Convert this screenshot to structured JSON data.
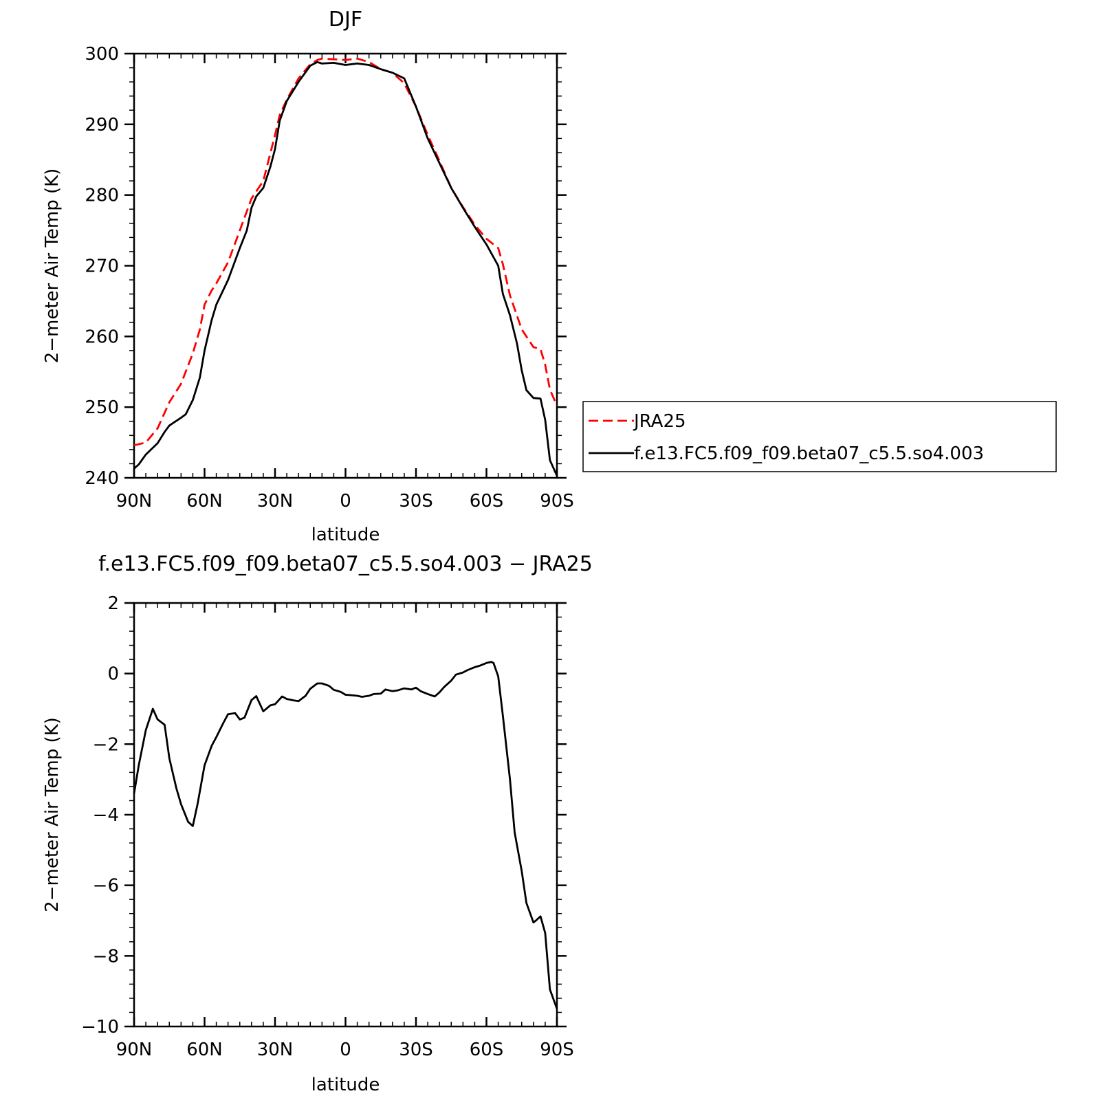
{
  "chart_data": [
    {
      "type": "line",
      "title": "DJF",
      "xlabel": "latitude",
      "ylabel": "2−meter Air Temp (K)",
      "xlim": [
        90,
        -90
      ],
      "ylim": [
        240,
        300
      ],
      "x_tick_values": [
        90,
        60,
        30,
        0,
        -30,
        -60,
        -90
      ],
      "x_tick_labels": [
        "90N",
        "60N",
        "30N",
        "0",
        "30S",
        "60S",
        "90S"
      ],
      "y_tick_values": [
        240,
        250,
        260,
        270,
        280,
        290,
        300
      ],
      "y_tick_labels": [
        "240",
        "250",
        "260",
        "270",
        "280",
        "290",
        "300"
      ],
      "grid": false,
      "legend": "right",
      "series": [
        {
          "name": "JRA25",
          "color": "#ff0000",
          "dash": "dashed",
          "x": [
            90,
            85,
            80,
            75,
            70,
            65,
            62,
            60,
            57,
            55,
            50,
            45,
            40,
            35,
            30,
            28,
            25,
            20,
            15,
            12,
            10,
            5,
            0,
            -5,
            -10,
            -15,
            -20,
            -25,
            -30,
            -35,
            -40,
            -45,
            -50,
            -55,
            -60,
            -65,
            -67,
            -70,
            -75,
            -80,
            -83,
            -85,
            -87,
            -90
          ],
          "y": [
            244.6,
            245.0,
            247.0,
            250.7,
            253.3,
            257.6,
            261.0,
            264.5,
            266.5,
            267.5,
            270.5,
            275.0,
            279.5,
            282.0,
            288.5,
            291.3,
            293.5,
            296.5,
            298.5,
            299.1,
            299.3,
            299.2,
            299.1,
            299.3,
            298.8,
            297.8,
            297.3,
            295.8,
            292.5,
            288.5,
            284.8,
            281.0,
            278.3,
            275.8,
            273.8,
            272.5,
            270.2,
            265.8,
            261.0,
            258.5,
            258.2,
            256.0,
            252.5,
            250.2
          ]
        },
        {
          "name": "f.e13.FC5.f09_f09.beta07_c5.5.so4.003",
          "color": "#000000",
          "dash": "solid",
          "x": [
            90,
            88,
            85,
            80,
            77,
            75,
            70,
            68,
            65,
            62,
            60,
            57,
            55,
            50,
            45,
            42,
            40,
            38,
            35,
            32,
            30,
            28,
            25,
            20,
            15,
            12,
            10,
            5,
            0,
            -5,
            -10,
            -15,
            -20,
            -25,
            -30,
            -35,
            -40,
            -45,
            -50,
            -55,
            -60,
            -65,
            -67,
            -70,
            -73,
            -75,
            -77,
            -80,
            -83,
            -85,
            -87,
            -90
          ],
          "y": [
            241.3,
            241.9,
            243.3,
            244.9,
            246.5,
            247.4,
            248.5,
            249.0,
            251.0,
            254.2,
            258.0,
            262.3,
            264.5,
            268.0,
            272.5,
            275.0,
            278.2,
            279.8,
            281.0,
            284.0,
            286.5,
            290.5,
            293.3,
            296.0,
            298.3,
            298.8,
            298.6,
            298.7,
            298.4,
            298.6,
            298.4,
            297.8,
            297.3,
            296.5,
            292.5,
            288.0,
            284.5,
            281.0,
            278.2,
            275.5,
            273.0,
            270.0,
            266.0,
            263.0,
            259.0,
            255.2,
            252.4,
            251.3,
            251.2,
            248.2,
            242.5,
            240.3
          ]
        }
      ]
    },
    {
      "type": "line",
      "title": "f.e13.FC5.f09_f09.beta07_c5.5.so4.003 − JRA25",
      "xlabel": "latitude",
      "ylabel": "2−meter Air Temp (K)",
      "xlim": [
        90,
        -90
      ],
      "ylim": [
        -10,
        2
      ],
      "x_tick_values": [
        90,
        60,
        30,
        0,
        -30,
        -60,
        -90
      ],
      "x_tick_labels": [
        "90N",
        "60N",
        "30N",
        "0",
        "30S",
        "60S",
        "90S"
      ],
      "y_tick_values": [
        -10,
        -8,
        -6,
        -4,
        -2,
        0,
        2
      ],
      "y_tick_labels": [
        "−10",
        "−8",
        "−6",
        "−4",
        "−2",
        "0",
        "2"
      ],
      "grid": false,
      "series": [
        {
          "color": "#000000",
          "dash": "solid",
          "x": [
            90,
            88,
            85,
            82,
            80,
            77,
            75,
            72,
            70,
            67,
            65,
            63,
            60,
            57,
            55,
            52,
            50,
            47,
            45,
            43,
            40,
            38,
            35,
            32,
            30,
            27,
            25,
            22,
            20,
            17,
            15,
            12,
            10,
            7,
            5,
            2,
            0,
            -2,
            -5,
            -7,
            -10,
            -12,
            -15,
            -17,
            -20,
            -22,
            -25,
            -28,
            -30,
            -32,
            -35,
            -38,
            -40,
            -42,
            -45,
            -47,
            -50,
            -52,
            -55,
            -57,
            -60,
            -62,
            -63,
            -65,
            -67,
            -70,
            -72,
            -75,
            -77,
            -80,
            -81,
            -83,
            -85,
            -87,
            -90
          ],
          "y": [
            -3.4,
            -2.6,
            -1.6,
            -1.0,
            -1.3,
            -1.45,
            -2.4,
            -3.25,
            -3.7,
            -4.2,
            -4.32,
            -3.7,
            -2.6,
            -2.05,
            -1.8,
            -1.4,
            -1.15,
            -1.12,
            -1.3,
            -1.25,
            -0.75,
            -0.64,
            -1.07,
            -0.9,
            -0.87,
            -0.65,
            -0.72,
            -0.76,
            -0.78,
            -0.63,
            -0.43,
            -0.28,
            -0.28,
            -0.35,
            -0.46,
            -0.52,
            -0.6,
            -0.61,
            -0.63,
            -0.66,
            -0.63,
            -0.58,
            -0.57,
            -0.45,
            -0.5,
            -0.48,
            -0.42,
            -0.45,
            -0.4,
            -0.5,
            -0.58,
            -0.65,
            -0.53,
            -0.38,
            -0.2,
            -0.03,
            0.03,
            0.1,
            0.18,
            0.22,
            0.3,
            0.33,
            0.3,
            -0.08,
            -1.2,
            -3.0,
            -4.5,
            -5.6,
            -6.5,
            -7.05,
            -7.0,
            -6.88,
            -7.35,
            -8.95,
            -9.5
          ]
        }
      ]
    }
  ]
}
